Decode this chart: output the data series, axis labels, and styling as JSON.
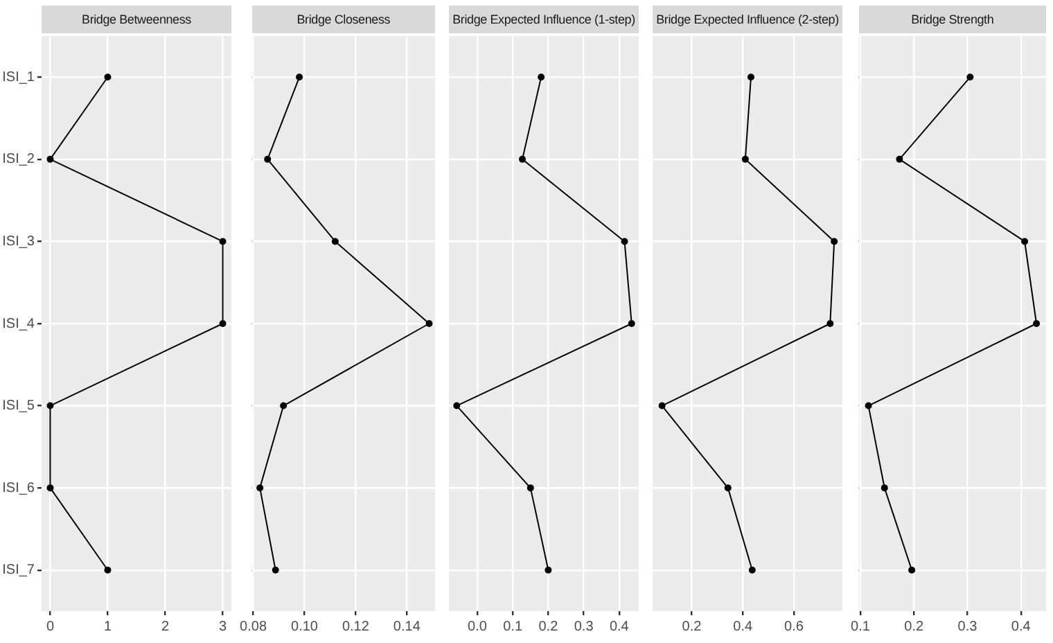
{
  "chart_data": [
    {
      "type": "line",
      "title": "Bridge Betweenness",
      "orientation": "horizontal",
      "categories": [
        "ISI_1",
        "ISI_2",
        "ISI_3",
        "ISI_4",
        "ISI_5",
        "ISI_6",
        "ISI_7"
      ],
      "series": [
        {
          "color": "#000000",
          "values": [
            1,
            0,
            3,
            3,
            0,
            0,
            1
          ]
        }
      ],
      "xlim": [
        -0.15,
        3.15
      ],
      "xticks": [
        0,
        1,
        2,
        3
      ],
      "grid": true,
      "marker": "circle",
      "line_style": "solid"
    },
    {
      "type": "line",
      "title": "Bridge Closeness",
      "orientation": "horizontal",
      "categories": [
        null,
        null,
        null,
        null,
        null,
        null,
        null
      ],
      "series": [
        {
          "color": "#000000",
          "values": [
            0.098,
            0.0856,
            0.112,
            0.1487,
            0.0918,
            0.0826,
            0.0887
          ]
        }
      ],
      "xlim": [
        0.0795,
        0.151
      ],
      "xticks": [
        0.08,
        {
          "value": 0.1,
          "label": "0.10"
        },
        0.12,
        0.14
      ],
      "grid": true,
      "marker": "circle",
      "line_style": "solid",
      "tick_labels": "x"
    },
    {
      "type": "line",
      "title": "Bridge Expected Influence (1-step)",
      "orientation": "horizontal",
      "categories": [
        null,
        null,
        null,
        null,
        null,
        null,
        null
      ],
      "series": [
        {
          "color": "#000000",
          "values": [
            0.18,
            0.127,
            0.415,
            0.435,
            -0.058,
            0.15,
            0.2
          ]
        }
      ],
      "xlim": [
        -0.08,
        0.455
      ],
      "xticks": [
        {
          "value": 0,
          "label": "0.0"
        },
        0.1,
        0.2,
        0.3,
        0.4
      ],
      "grid": true,
      "marker": "circle",
      "line_style": "solid",
      "tick_labels": "x"
    },
    {
      "type": "line",
      "title": "Bridge Expected Influence (2-step)",
      "orientation": "horizontal",
      "categories": [
        null,
        null,
        null,
        null,
        null,
        null,
        null
      ],
      "series": [
        {
          "color": "#000000",
          "values": [
            0.432,
            0.41,
            0.758,
            0.742,
            0.084,
            0.342,
            0.437
          ]
        }
      ],
      "xlim": [
        0.047,
        0.79
      ],
      "xticks": [
        0.2,
        0.4,
        0.6
      ],
      "grid": true,
      "marker": "circle",
      "line_style": "solid",
      "tick_labels": "x"
    },
    {
      "type": "line",
      "title": "Bridge Strength",
      "orientation": "horizontal",
      "categories": [
        null,
        null,
        null,
        null,
        null,
        null,
        null
      ],
      "series": [
        {
          "color": "#000000",
          "values": [
            0.305,
            0.173,
            0.407,
            0.429,
            0.115,
            0.145,
            0.196
          ]
        }
      ],
      "xlim": [
        0.097,
        0.447
      ],
      "xticks": [
        0.1,
        0.2,
        0.3,
        0.4
      ],
      "grid": true,
      "marker": "circle",
      "line_style": "solid",
      "tick_labels": "x"
    }
  ]
}
